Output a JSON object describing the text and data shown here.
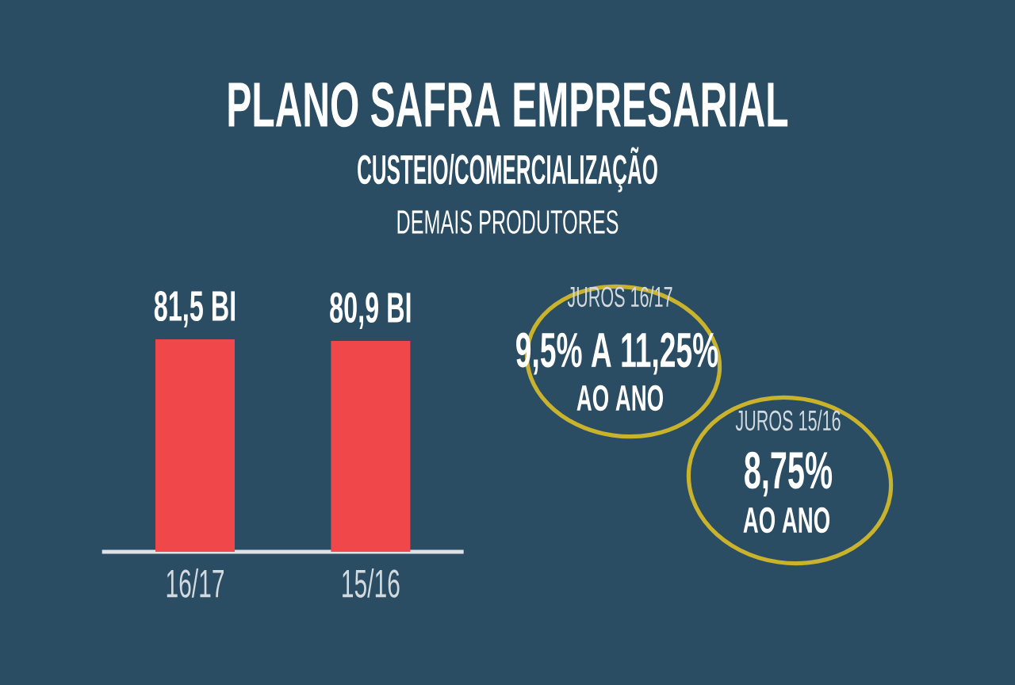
{
  "chart_data": {
    "type": "bar",
    "title": "PLANO SAFRA EMPRESARIAL",
    "subtitle": "CUSTEIO/COMERCIALIZAÇÃO",
    "categories": [
      "16/17",
      "15/16"
    ],
    "values": [
      81.5,
      80.9
    ],
    "value_labels": [
      "81,5 BI",
      "80,9 BI"
    ],
    "color": "#f0484a",
    "tick_labels": "x",
    "annotations": [
      "DEMAIS PRODUTORES",
      "JUROS 16/17",
      "9,5% A 11,25%",
      "AO ANO",
      "JUROS 15/16",
      "8,75%",
      "AO ANO"
    ]
  }
}
